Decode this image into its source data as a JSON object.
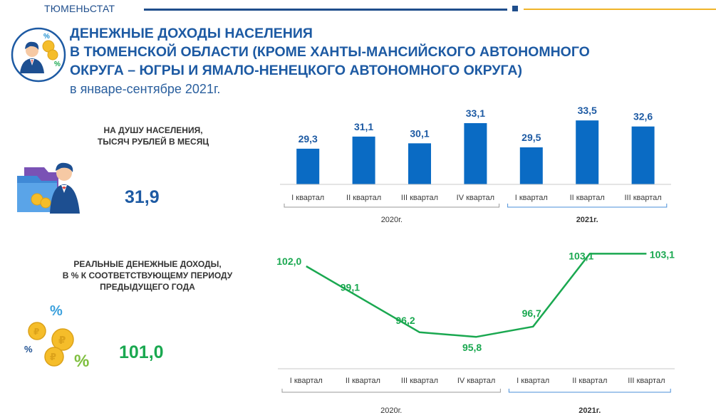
{
  "header": {
    "agency": "ТЮМЕНЬСТАТ",
    "title_line1": "ДЕНЕЖНЫЕ ДОХОДЫ НАСЕЛЕНИЯ",
    "title_line2": "В ТЮМЕНСКОЙ ОБЛАСТИ (КРОМЕ ХАНТЫ-МАНСИЙСКОГО АВТОНОМНОГО",
    "title_line3": "ОКРУГА – ЮГРЫ И ЯМАЛО-НЕНЕЦКОГО АВТОНОМНОГО ОКРУГА)",
    "subtitle": "в январе-сентябре 2021г."
  },
  "kpis": {
    "per_capita": {
      "label_line1": "НА ДУШУ НАСЕЛЕНИЯ,",
      "label_line2": "ТЫСЯЧ РУБЛЕЙ В МЕСЯЦ",
      "value": "31,9"
    },
    "real_income": {
      "label_line1": "РЕАЛЬНЫЕ ДЕНЕЖНЫЕ ДОХОДЫ,",
      "label_line2": "В % К СООТВЕТСТВУЮЩЕМУ ПЕРИОДУ",
      "label_line3": "ПРЕДЫДУЩЕГО ГОДА",
      "value": "101,0"
    }
  },
  "colors": {
    "bar": "#0a6bc4",
    "line": "#1aa850",
    "title": "#1d5aa3",
    "rule_blue": "#1f4e8c",
    "rule_gold": "#f0b429"
  },
  "chart_data": [
    {
      "type": "bar",
      "title": "",
      "categories": [
        "I квартал",
        "II квартал",
        "III квартал",
        "IV квартал",
        "I квартал",
        "II квартал",
        "III квартал"
      ],
      "groups": [
        {
          "label": "2020г.",
          "count": 4
        },
        {
          "label": "2021г.",
          "count": 3
        }
      ],
      "values": [
        29.3,
        31.1,
        30.1,
        33.1,
        29.5,
        33.5,
        32.6
      ],
      "value_labels": [
        "29,3",
        "31,1",
        "30,1",
        "33,1",
        "29,5",
        "33,5",
        "32,6"
      ],
      "ylim": [
        24,
        35
      ],
      "grid": false,
      "legend": "none"
    },
    {
      "type": "line",
      "title": "",
      "categories": [
        "I квартал",
        "II квартал",
        "III квартал",
        "IV квартал",
        "I квартал",
        "II квартал",
        "III квартал"
      ],
      "groups": [
        {
          "label": "2020г.",
          "count": 4
        },
        {
          "label": "2021г.",
          "count": 3
        }
      ],
      "values": [
        102.0,
        99.1,
        96.2,
        95.8,
        96.7,
        103.1,
        103.1
      ],
      "value_labels": [
        "102,0",
        "99,1",
        "96,2",
        "95,8",
        "96,7",
        "103,1",
        "103,1"
      ],
      "ylim": [
        94,
        104
      ],
      "grid": false,
      "legend": "none"
    }
  ]
}
